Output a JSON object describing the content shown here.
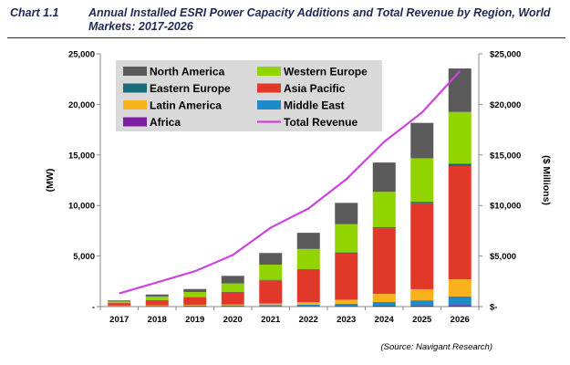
{
  "header": {
    "label": "Chart 1.1",
    "title": "Annual Installed ESRI Power Capacity Additions and Total Revenue by Region, World Markets: 2017-2026"
  },
  "source": "(Source: Navigant Research)",
  "chart_data": {
    "type": "bar",
    "stacked": true,
    "categories": [
      "2017",
      "2018",
      "2019",
      "2020",
      "2021",
      "2022",
      "2023",
      "2024",
      "2025",
      "2026"
    ],
    "ylabel": "(MW)",
    "ylim": [
      0,
      25000
    ],
    "y_ticks": [
      "-",
      "5,000",
      "10,000",
      "15,000",
      "20,000",
      "25,000"
    ],
    "y2label": "($ Millions)",
    "y2lim": [
      0,
      25000
    ],
    "y2_ticks": [
      "$-",
      "$5,000",
      "$10,000",
      "$15,000",
      "$20,000",
      "$25,000"
    ],
    "legend_position": "top-left, inside plot",
    "series": [
      {
        "name": "Africa",
        "color": "#7b1fa2",
        "values": [
          20,
          30,
          40,
          50,
          60,
          70,
          80,
          100,
          120,
          150
        ]
      },
      {
        "name": "Middle East",
        "color": "#1e8ac8",
        "values": [
          40,
          50,
          60,
          70,
          90,
          120,
          200,
          350,
          500,
          850
        ]
      },
      {
        "name": "Latin America",
        "color": "#f9b21b",
        "values": [
          40,
          50,
          60,
          80,
          150,
          250,
          400,
          800,
          1100,
          1700
        ]
      },
      {
        "name": "Asia Pacific",
        "color": "#e2382a",
        "values": [
          250,
          500,
          750,
          1200,
          2300,
          3200,
          4600,
          6500,
          8500,
          11200
        ]
      },
      {
        "name": "Eastern Europe",
        "color": "#1a6b7a",
        "values": [
          10,
          20,
          30,
          40,
          50,
          60,
          80,
          100,
          150,
          250
        ]
      },
      {
        "name": "Western Europe",
        "color": "#92d400",
        "values": [
          150,
          350,
          500,
          850,
          1500,
          2000,
          2800,
          3500,
          4300,
          5100
        ]
      },
      {
        "name": "North America",
        "color": "#5a5a5a",
        "values": [
          100,
          200,
          300,
          750,
          1150,
          1600,
          2100,
          2900,
          3500,
          4300
        ]
      }
    ],
    "line_series": {
      "name": "Total Revenue",
      "color": "#cc44dd",
      "axis": "right",
      "values": [
        1300,
        2400,
        3500,
        5100,
        7800,
        9700,
        12600,
        16300,
        19200,
        23300
      ]
    },
    "legend_order": [
      "North America",
      "Western Europe",
      "Eastern Europe",
      "Asia Pacific",
      "Latin America",
      "Middle East",
      "Africa",
      "Total Revenue"
    ]
  }
}
